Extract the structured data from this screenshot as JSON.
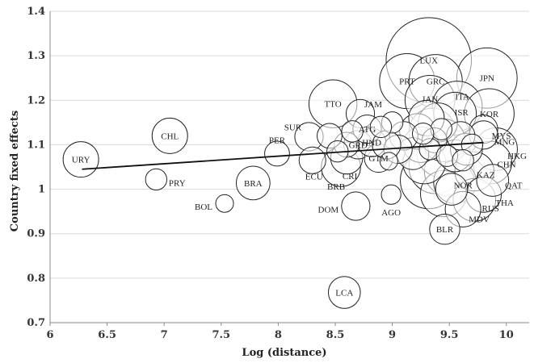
{
  "chart_data": {
    "type": "scatter",
    "title": "",
    "xlabel": "Log (distance)",
    "ylabel": "Country fixed effects",
    "xlim": [
      6,
      10.2
    ],
    "ylim": [
      0.7,
      1.4
    ],
    "x_ticks": [
      "6",
      "6.5",
      "7",
      "7.5",
      "8",
      "8.5",
      "9",
      "9.5",
      "10"
    ],
    "y_ticks": [
      "0.7",
      "0.8",
      "0.9",
      "1",
      "1.1",
      "1.2",
      "1.3",
      "1.4"
    ],
    "grid": "horizontal",
    "trend_line": {
      "x": [
        6.28,
        9.8
      ],
      "y": [
        1.045,
        1.105
      ]
    },
    "points": [
      {
        "label": "URY",
        "x": 6.27,
        "y": 1.067,
        "size": 1.0
      },
      {
        "label": "CHL",
        "x": 7.05,
        "y": 1.12,
        "size": 1.0
      },
      {
        "label": "PRY",
        "x": 6.93,
        "y": 1.022,
        "size": 0.6
      },
      {
        "label": "BOL",
        "x": 7.53,
        "y": 0.968,
        "size": 0.5
      },
      {
        "label": "BRA",
        "x": 7.78,
        "y": 1.014,
        "size": 0.95
      },
      {
        "label": "PER",
        "x": 7.99,
        "y": 1.08,
        "size": 0.7
      },
      {
        "label": "SUR",
        "x": 8.27,
        "y": 1.118,
        "size": 0.8
      },
      {
        "label": "TTO",
        "x": 8.48,
        "y": 1.192,
        "size": 1.35
      },
      {
        "label": "ECU",
        "x": 8.3,
        "y": 1.065,
        "size": 0.75
      },
      {
        "label": "BRB",
        "x": 8.55,
        "y": 1.05,
        "size": 1.1
      },
      {
        "label": "CRI",
        "x": 8.6,
        "y": 1.07,
        "size": 0.9
      },
      {
        "label": "JAM",
        "x": 8.72,
        "y": 1.17,
        "size": 0.8
      },
      {
        "label": "DOM",
        "x": 8.68,
        "y": 0.962,
        "size": 0.8
      },
      {
        "label": "LCA",
        "x": 8.58,
        "y": 0.768,
        "size": 0.9
      },
      {
        "label": "AGO",
        "x": 8.99,
        "y": 0.988,
        "size": 0.55
      },
      {
        "label": "GRD",
        "x": 8.7,
        "y": 1.1,
        "size": 0.8
      },
      {
        "label": "GTM",
        "x": 8.88,
        "y": 1.07,
        "size": 0.8
      },
      {
        "label": "HND",
        "x": 8.82,
        "y": 1.105,
        "size": 0.8
      },
      {
        "label": "ATG",
        "x": 8.78,
        "y": 1.135,
        "size": 0.8
      },
      {
        "label": "PRT",
        "x": 9.13,
        "y": 1.243,
        "size": 1.55
      },
      {
        "label": "LUX",
        "x": 9.32,
        "y": 1.29,
        "size": 2.4
      },
      {
        "label": "GRC",
        "x": 9.38,
        "y": 1.243,
        "size": 1.5
      },
      {
        "label": "JPN",
        "x": 9.83,
        "y": 1.25,
        "size": 1.7
      },
      {
        "label": "JAN",
        "x": 9.33,
        "y": 1.2,
        "size": 1.4
      },
      {
        "label": "ITA",
        "x": 9.57,
        "y": 1.187,
        "size": 1.4
      },
      {
        "label": "KOR",
        "x": 9.85,
        "y": 1.17,
        "size": 1.4
      },
      {
        "label": "ISR",
        "x": 9.55,
        "y": 1.17,
        "size": 1.2
      },
      {
        "label": "MYS",
        "x": 9.8,
        "y": 1.135,
        "size": 0.8
      },
      {
        "label": "MNG",
        "x": 9.8,
        "y": 1.122,
        "size": 0.8
      },
      {
        "label": "HKG",
        "x": 9.91,
        "y": 1.09,
        "size": 1.2
      },
      {
        "label": "CHN",
        "x": 9.86,
        "y": 1.06,
        "size": 1.2
      },
      {
        "label": "KAZ",
        "x": 9.72,
        "y": 1.04,
        "size": 1.1
      },
      {
        "label": "QAT",
        "x": 9.88,
        "y": 1.02,
        "size": 0.9
      },
      {
        "label": "NOR",
        "x": 9.55,
        "y": 1.016,
        "size": 1.2
      },
      {
        "label": "THA",
        "x": 9.8,
        "y": 0.988,
        "size": 1.0
      },
      {
        "label": "RUS",
        "x": 9.72,
        "y": 0.976,
        "size": 1.2
      },
      {
        "label": "MDV",
        "x": 9.62,
        "y": 0.955,
        "size": 1.0
      },
      {
        "label": "BLR",
        "x": 9.46,
        "y": 0.91,
        "size": 0.85
      },
      {
        "label": "",
        "x": 9.55,
        "y": 1.075,
        "size": 0.9
      },
      {
        "label": "",
        "x": 9.25,
        "y": 1.1,
        "size": 1.0
      },
      {
        "label": "",
        "x": 9.35,
        "y": 1.13,
        "size": 1.3
      },
      {
        "label": "",
        "x": 9.42,
        "y": 1.08,
        "size": 1.3
      },
      {
        "label": "",
        "x": 9.38,
        "y": 1.05,
        "size": 1.5
      },
      {
        "label": "",
        "x": 9.28,
        "y": 1.06,
        "size": 1.2
      },
      {
        "label": "",
        "x": 9.45,
        "y": 1.11,
        "size": 1.2
      },
      {
        "label": "",
        "x": 9.32,
        "y": 1.02,
        "size": 1.6
      },
      {
        "label": "",
        "x": 9.5,
        "y": 1.04,
        "size": 1.4
      },
      {
        "label": "",
        "x": 9.22,
        "y": 1.13,
        "size": 1.0
      },
      {
        "label": "",
        "x": 9.4,
        "y": 1.15,
        "size": 1.1
      },
      {
        "label": "",
        "x": 9.3,
        "y": 1.16,
        "size": 1.0
      },
      {
        "label": "",
        "x": 9.45,
        "y": 0.99,
        "size": 1.3
      },
      {
        "label": "",
        "x": 9.6,
        "y": 1.12,
        "size": 0.8
      },
      {
        "label": "",
        "x": 9.65,
        "y": 1.09,
        "size": 0.9
      },
      {
        "label": "",
        "x": 9.18,
        "y": 1.08,
        "size": 0.9
      },
      {
        "label": "",
        "x": 9.1,
        "y": 1.12,
        "size": 0.8
      },
      {
        "label": "",
        "x": 9.05,
        "y": 1.09,
        "size": 0.8
      },
      {
        "label": "",
        "x": 8.95,
        "y": 1.1,
        "size": 0.8
      },
      {
        "label": "",
        "x": 9.0,
        "y": 1.15,
        "size": 0.6
      },
      {
        "label": "",
        "x": 8.9,
        "y": 1.14,
        "size": 0.6
      },
      {
        "label": "",
        "x": 8.6,
        "y": 1.1,
        "size": 0.7
      },
      {
        "label": "",
        "x": 8.45,
        "y": 1.12,
        "size": 0.7
      },
      {
        "label": "",
        "x": 8.52,
        "y": 1.085,
        "size": 0.6
      },
      {
        "label": "",
        "x": 8.65,
        "y": 1.13,
        "size": 0.6
      },
      {
        "label": "",
        "x": 9.37,
        "y": 1.11,
        "size": 0.7
      },
      {
        "label": "",
        "x": 9.43,
        "y": 1.135,
        "size": 0.6
      },
      {
        "label": "",
        "x": 9.33,
        "y": 1.09,
        "size": 0.6
      },
      {
        "label": "",
        "x": 9.48,
        "y": 1.075,
        "size": 0.6
      },
      {
        "label": "",
        "x": 9.27,
        "y": 1.125,
        "size": 0.6
      },
      {
        "label": "",
        "x": 9.7,
        "y": 1.1,
        "size": 0.6
      },
      {
        "label": "",
        "x": 9.62,
        "y": 1.065,
        "size": 0.6
      },
      {
        "label": "",
        "x": 9.52,
        "y": 1.0,
        "size": 0.9
      },
      {
        "label": "",
        "x": 8.97,
        "y": 1.063,
        "size": 0.5
      }
    ]
  }
}
